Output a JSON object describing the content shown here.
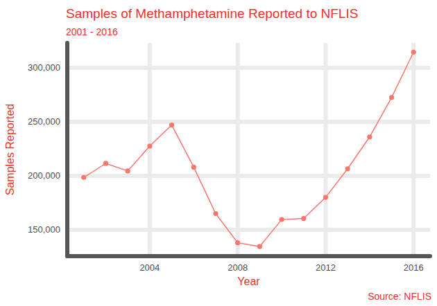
{
  "chart_data": {
    "type": "line",
    "title": "Samples of Methamphetamine Reported to NFLIS",
    "subtitle": "2001 - 2016",
    "x_label": "Year",
    "y_label": "Samples Reported",
    "caption": "Source: NFLIS",
    "x": [
      2001,
      2002,
      2003,
      2004,
      2005,
      2006,
      2007,
      2008,
      2009,
      2010,
      2011,
      2012,
      2013,
      2014,
      2015,
      2016
    ],
    "values": [
      198500,
      211500,
      204500,
      227500,
      247000,
      208000,
      165000,
      138000,
      134500,
      159500,
      160500,
      180000,
      206500,
      236000,
      272500,
      314500
    ],
    "color": "#f8766d",
    "marker": "circle",
    "line_style": "solid",
    "xlim": [
      2000.25,
      2016.75
    ],
    "xticks": [
      2004,
      2008,
      2012,
      2016
    ],
    "ylim": [
      125600,
      323000
    ],
    "yticks": [
      {
        "value": 150000,
        "label": "150,000"
      },
      {
        "value": 200000,
        "label": "200,000"
      },
      {
        "value": 250000,
        "label": "250,000"
      },
      {
        "value": 300000,
        "label": "300,000"
      }
    ],
    "grid": true
  }
}
